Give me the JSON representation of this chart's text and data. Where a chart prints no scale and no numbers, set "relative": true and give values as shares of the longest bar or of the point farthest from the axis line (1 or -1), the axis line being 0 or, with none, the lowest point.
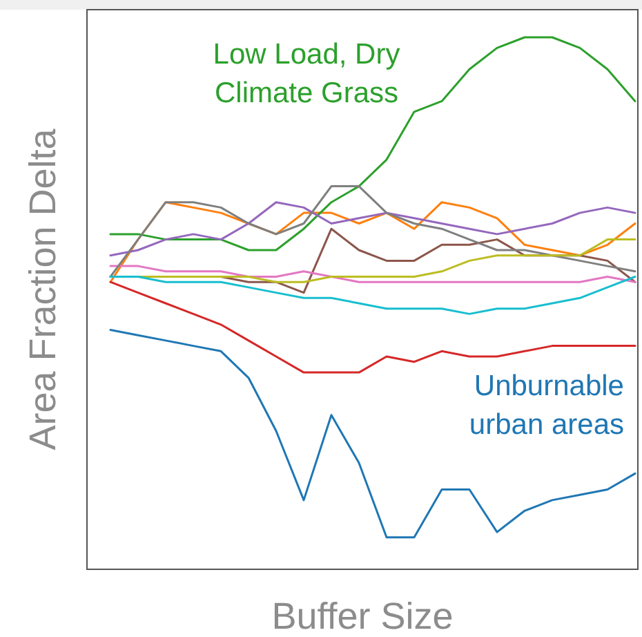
{
  "chart_data": {
    "type": "line",
    "relative": true,
    "xlabel": "Buffer Size",
    "ylabel": "Area Fraction Delta",
    "categories": [
      null,
      null,
      null,
      null,
      null,
      null,
      null,
      null,
      null,
      null,
      null,
      null,
      null,
      null,
      null,
      null,
      null,
      null,
      null,
      null
    ],
    "series": [
      {
        "name": "Unburnable urban areas",
        "color": "#1f77b4",
        "values": [
          0.45,
          0.44,
          0.43,
          0.42,
          0.41,
          0.36,
          0.26,
          0.13,
          0.29,
          0.2,
          0.06,
          0.06,
          0.15,
          0.15,
          0.07,
          0.11,
          0.13,
          0.14,
          0.15,
          0.18
        ]
      },
      {
        "color": "#ff7f0e",
        "values": [
          0.54,
          0.62,
          0.69,
          0.68,
          0.67,
          0.65,
          0.63,
          0.67,
          0.67,
          0.65,
          0.67,
          0.64,
          0.69,
          0.68,
          0.66,
          0.61,
          0.6,
          0.59,
          0.61,
          0.65
        ]
      },
      {
        "name": "Low Load, Dry Climate Grass",
        "color": "#2ca02c",
        "values": [
          0.63,
          0.63,
          0.62,
          0.62,
          0.62,
          0.6,
          0.6,
          0.64,
          0.69,
          0.72,
          0.77,
          0.86,
          0.88,
          0.94,
          0.98,
          1,
          1,
          0.98,
          0.94,
          0.88
        ]
      },
      {
        "color": "#d62728",
        "values": [
          0.54,
          0.52,
          0.5,
          0.48,
          0.46,
          0.43,
          0.4,
          0.37,
          0.37,
          0.37,
          0.4,
          0.39,
          0.41,
          0.4,
          0.4,
          0.41,
          0.42,
          0.42,
          0.42,
          0.42
        ]
      },
      {
        "color": "#9467bd",
        "values": [
          0.59,
          0.6,
          0.62,
          0.63,
          0.62,
          0.65,
          0.69,
          0.68,
          0.65,
          0.66,
          0.67,
          0.66,
          0.65,
          0.64,
          0.63,
          0.64,
          0.65,
          0.67,
          0.68,
          0.67
        ]
      },
      {
        "color": "#8c564b",
        "values": [
          0.55,
          0.55,
          0.55,
          0.55,
          0.55,
          0.54,
          0.54,
          0.52,
          0.64,
          0.6,
          0.58,
          0.58,
          0.61,
          0.61,
          0.62,
          0.59,
          0.59,
          0.59,
          0.58,
          0.54
        ]
      },
      {
        "color": "#e377c2",
        "values": [
          0.57,
          0.57,
          0.56,
          0.56,
          0.56,
          0.55,
          0.55,
          0.56,
          0.55,
          0.54,
          0.54,
          0.54,
          0.54,
          0.54,
          0.54,
          0.54,
          0.54,
          0.54,
          0.55,
          0.54
        ]
      },
      {
        "color": "#7f7f7f",
        "values": [
          0.55,
          0.62,
          0.69,
          0.69,
          0.68,
          0.65,
          0.63,
          0.65,
          0.72,
          0.72,
          0.67,
          0.65,
          0.64,
          0.62,
          0.6,
          0.6,
          0.59,
          0.58,
          0.57,
          0.56
        ]
      },
      {
        "color": "#bcbd22",
        "values": [
          0.55,
          0.55,
          0.55,
          0.55,
          0.55,
          0.55,
          0.54,
          0.54,
          0.55,
          0.55,
          0.55,
          0.55,
          0.56,
          0.58,
          0.59,
          0.59,
          0.59,
          0.59,
          0.62,
          0.62
        ]
      },
      {
        "color": "#17becf",
        "values": [
          0.55,
          0.55,
          0.54,
          0.54,
          0.54,
          0.53,
          0.52,
          0.51,
          0.51,
          0.5,
          0.49,
          0.49,
          0.49,
          0.48,
          0.49,
          0.49,
          0.5,
          0.51,
          0.53,
          0.55
        ]
      }
    ]
  }
}
